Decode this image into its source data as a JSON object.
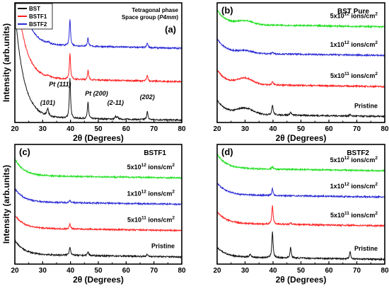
{
  "colors": {
    "black": "#111111",
    "red": "#ff2020",
    "blue": "#2a2ad6",
    "green": "#22e022"
  },
  "chart_data": [
    {
      "panel": "(a)",
      "type": "line",
      "title": "",
      "xlabel": "2θ (Degrees)",
      "ylabel": "Intensity (arb.units)",
      "xlim": [
        20,
        80
      ],
      "x_ticks": [
        "20",
        "30",
        "40",
        "50",
        "60",
        "70",
        "80"
      ],
      "legend": [
        "BST",
        "BSTF1",
        "BSTF2"
      ],
      "legend_position": "top-left",
      "phase_lines": [
        "Tetragonal phase",
        "Space group ("
      ],
      "phase_italic": "P4mm",
      "phase_close": ")",
      "peak_labels": [
        {
          "text": "(101)",
          "x": 31.8
        },
        {
          "text": "Pt (111)",
          "x": 39.8
        },
        {
          "text": "Pt (200)",
          "x": 46.3
        },
        {
          "text": "(2-11)",
          "x": 56.2
        },
        {
          "text": "(202)",
          "x": 67.6
        }
      ],
      "series": [
        {
          "name": "BST",
          "color": "black",
          "baseline": 0.02,
          "amplitude": 0.9,
          "slope": 0.02,
          "peaks": [
            [
              31.8,
              0.06,
              0.35
            ],
            [
              39.8,
              0.34,
              0.25
            ],
            [
              46.3,
              0.14,
              0.25
            ],
            [
              56.2,
              0.02,
              0.3
            ],
            [
              57.0,
              0.015,
              0.3
            ],
            [
              67.6,
              0.07,
              0.25
            ]
          ]
        },
        {
          "name": "BSTF1",
          "color": "red",
          "baseline": 0.34,
          "amplitude": 0.9,
          "slope": 0.03,
          "peaks": [
            [
              39.8,
              0.22,
              0.25
            ],
            [
              46.3,
              0.08,
              0.25
            ],
            [
              67.6,
              0.05,
              0.25
            ],
            [
              32.0,
              0.012,
              0.4
            ]
          ]
        },
        {
          "name": "BSTF2",
          "color": "blue",
          "baseline": 0.62,
          "amplitude": 0.9,
          "slope": 0.03,
          "peaks": [
            [
              39.8,
              0.22,
              0.25
            ],
            [
              46.3,
              0.07,
              0.25
            ],
            [
              67.6,
              0.04,
              0.25
            ],
            [
              32.0,
              0.012,
              0.4
            ]
          ]
        }
      ]
    },
    {
      "panel": "(b)",
      "type": "line",
      "title": "BST Pure",
      "xlabel": "2θ (Degrees)",
      "ylabel": "",
      "xlim": [
        20,
        80
      ],
      "x_ticks": [
        "20",
        "30",
        "40",
        "50",
        "60",
        "70",
        "80"
      ],
      "series": [
        {
          "label_base": "Pristine",
          "label_exp": "",
          "label_unit": "",
          "color": "black",
          "baseline": 0.05,
          "amplitude": 0.12,
          "slope": 0.02,
          "bump": 0.05,
          "peaks": [
            [
              39.8,
              0.08,
              0.3
            ],
            [
              46.3,
              0.025,
              0.3
            ],
            [
              67.6,
              0.012,
              0.3
            ]
          ]
        },
        {
          "label_base": "5x10",
          "label_exp": "11",
          "label_unit": " ions/cm",
          "color": "red",
          "baseline": 0.3,
          "amplitude": 0.12,
          "slope": 0.02,
          "bump": 0.05,
          "peaks": [
            [
              39.8,
              0.03,
              0.3
            ]
          ]
        },
        {
          "label_base": "1x10",
          "label_exp": "12",
          "label_unit": " ions/cm",
          "color": "blue",
          "baseline": 0.56,
          "amplitude": 0.12,
          "slope": 0.02,
          "bump": 0.02,
          "peaks": [
            [
              39.8,
              0.015,
              0.3
            ]
          ]
        },
        {
          "label_base": "5x10",
          "label_exp": "12",
          "label_unit": " ions/cm",
          "color": "green",
          "baseline": 0.8,
          "amplitude": 0.12,
          "slope": 0.02,
          "bump": 0.03,
          "peaks": []
        }
      ]
    },
    {
      "panel": "(c)",
      "type": "line",
      "title": "BSTF1",
      "xlabel": "2θ (Degrees)",
      "ylabel": "Intensity (arb.units)",
      "xlim": [
        20,
        80
      ],
      "x_ticks": [
        "20",
        "30",
        "40",
        "50",
        "60",
        "70",
        "80"
      ],
      "series": [
        {
          "label_base": "Pristine",
          "label_exp": "",
          "label_unit": "",
          "color": "black",
          "baseline": 0.06,
          "amplitude": 0.12,
          "slope": 0.02,
          "bump": 0.0,
          "peaks": [
            [
              39.8,
              0.07,
              0.3
            ],
            [
              46.3,
              0.03,
              0.3
            ],
            [
              67.6,
              0.015,
              0.3
            ]
          ]
        },
        {
          "label_base": "5x10",
          "label_exp": "11",
          "label_unit": " ions/cm",
          "color": "red",
          "baseline": 0.28,
          "amplitude": 0.11,
          "slope": 0.02,
          "bump": 0.0,
          "peaks": [
            [
              39.8,
              0.04,
              0.3
            ]
          ]
        },
        {
          "label_base": "1x10",
          "label_exp": "12",
          "label_unit": " ions/cm",
          "color": "blue",
          "baseline": 0.5,
          "amplitude": 0.11,
          "slope": 0.02,
          "bump": 0.0,
          "peaks": [
            [
              39.8,
              0.02,
              0.3
            ]
          ]
        },
        {
          "label_base": "5x10",
          "label_exp": "12",
          "label_unit": " ions/cm",
          "color": "green",
          "baseline": 0.72,
          "amplitude": 0.14,
          "slope": 0.02,
          "bump": 0.0,
          "peaks": []
        }
      ]
    },
    {
      "panel": "(d)",
      "type": "line",
      "title": "BSTF2",
      "xlabel": "2θ (Degrees)",
      "ylabel": "",
      "xlim": [
        20,
        80
      ],
      "x_ticks": [
        "20",
        "30",
        "40",
        "50",
        "60",
        "70",
        "80"
      ],
      "series": [
        {
          "label_base": "Pristine",
          "label_exp": "",
          "label_unit": "",
          "color": "black",
          "baseline": 0.04,
          "amplitude": 0.08,
          "slope": 0.02,
          "bump": 0.0,
          "peaks": [
            [
              31.8,
              0.025,
              0.35
            ],
            [
              39.8,
              0.22,
              0.25
            ],
            [
              46.3,
              0.09,
              0.25
            ],
            [
              67.6,
              0.06,
              0.25
            ]
          ]
        },
        {
          "label_base": "5x10",
          "label_exp": "11",
          "label_unit": " ions/cm",
          "color": "red",
          "baseline": 0.32,
          "amplitude": 0.1,
          "slope": 0.02,
          "bump": 0.0,
          "peaks": [
            [
              39.8,
              0.16,
              0.25
            ],
            [
              46.3,
              0.012,
              0.3
            ]
          ]
        },
        {
          "label_base": "1x10",
          "label_exp": "12",
          "label_unit": " ions/cm",
          "color": "blue",
          "baseline": 0.56,
          "amplitude": 0.1,
          "slope": 0.02,
          "bump": 0.0,
          "peaks": [
            [
              39.8,
              0.06,
              0.25
            ]
          ]
        },
        {
          "label_base": "5x10",
          "label_exp": "12",
          "label_unit": " ions/cm",
          "color": "green",
          "baseline": 0.78,
          "amplitude": 0.12,
          "slope": 0.02,
          "bump": 0.0,
          "peaks": [
            [
              39.8,
              0.02,
              0.3
            ]
          ]
        }
      ]
    }
  ]
}
